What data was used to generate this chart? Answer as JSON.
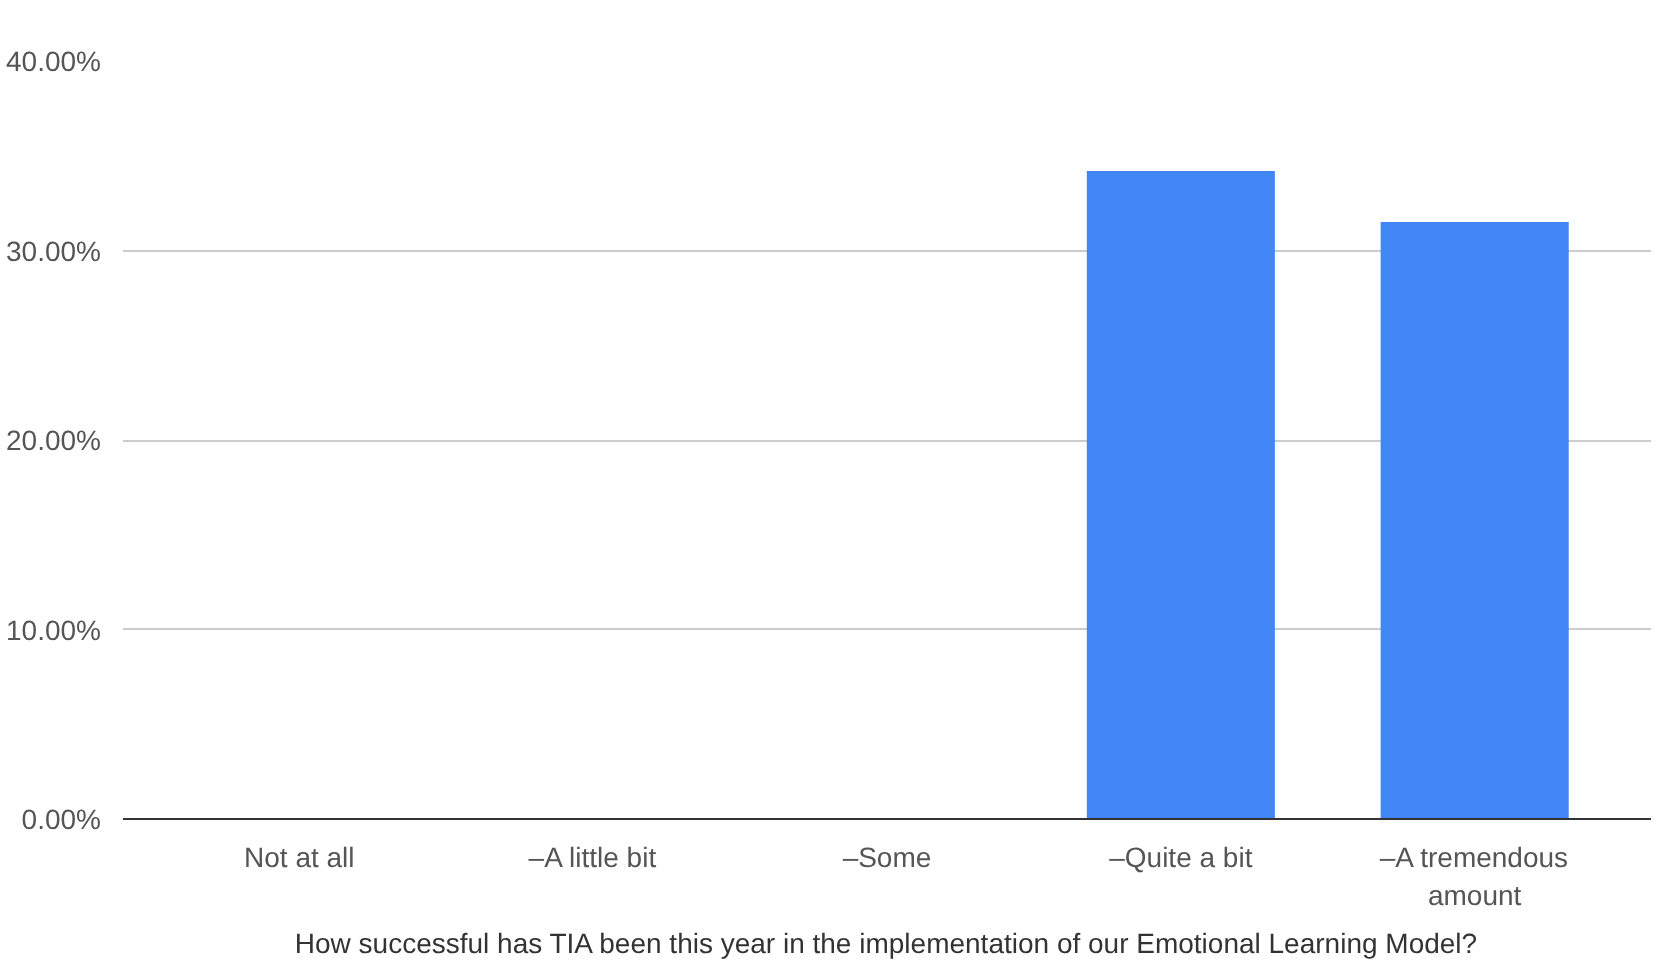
{
  "chart_data": {
    "type": "bar",
    "xlabel": "How successful has TIA been this year in the implementation of our Emotional Learning Model?",
    "categories": [
      "Not at all",
      "–A little bit",
      "–Some",
      "–Quite a bit",
      "–A tremendous amount"
    ],
    "values": [
      0,
      0,
      0,
      34.2,
      31.5
    ],
    "color": "#4285f4",
    "ylim": [
      0,
      40
    ],
    "yticks": [
      {
        "value": 0,
        "label": "0.00%"
      },
      {
        "value": 10,
        "label": "10.00%"
      },
      {
        "value": 20,
        "label": "20.00%"
      },
      {
        "value": 30,
        "label": "30.00%"
      },
      {
        "value": 40,
        "label": "40.00%"
      }
    ],
    "grid": "y"
  }
}
